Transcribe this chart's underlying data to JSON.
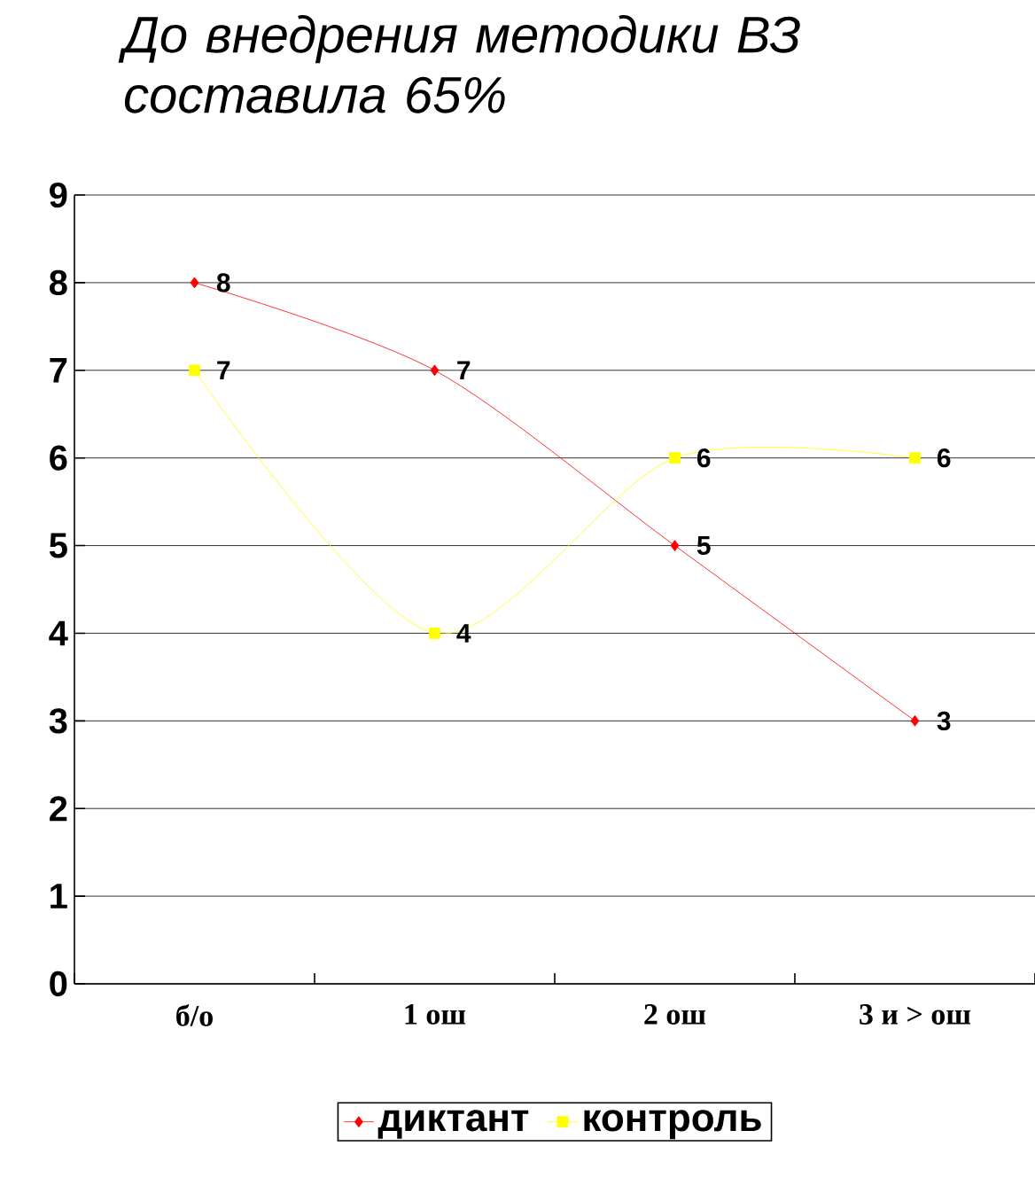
{
  "chart_data": {
    "type": "line",
    "title": "До внедрения методики ВЗ составила 65%",
    "categories": [
      "б/о",
      "1 ош",
      "2 ош",
      "3 и > ош"
    ],
    "series": [
      {
        "name": "диктант",
        "color": "#ff0000",
        "marker": "diamond",
        "values": [
          8,
          7,
          5,
          3
        ]
      },
      {
        "name": "контроль",
        "color": "#ffff00",
        "marker": "square",
        "values": [
          7,
          4,
          6,
          6
        ]
      }
    ],
    "ylim": [
      0,
      9
    ],
    "yticks": [
      0,
      1,
      2,
      3,
      4,
      5,
      6,
      7,
      8,
      9
    ],
    "grid": "y",
    "legend": "bottom",
    "data_labels": true
  }
}
